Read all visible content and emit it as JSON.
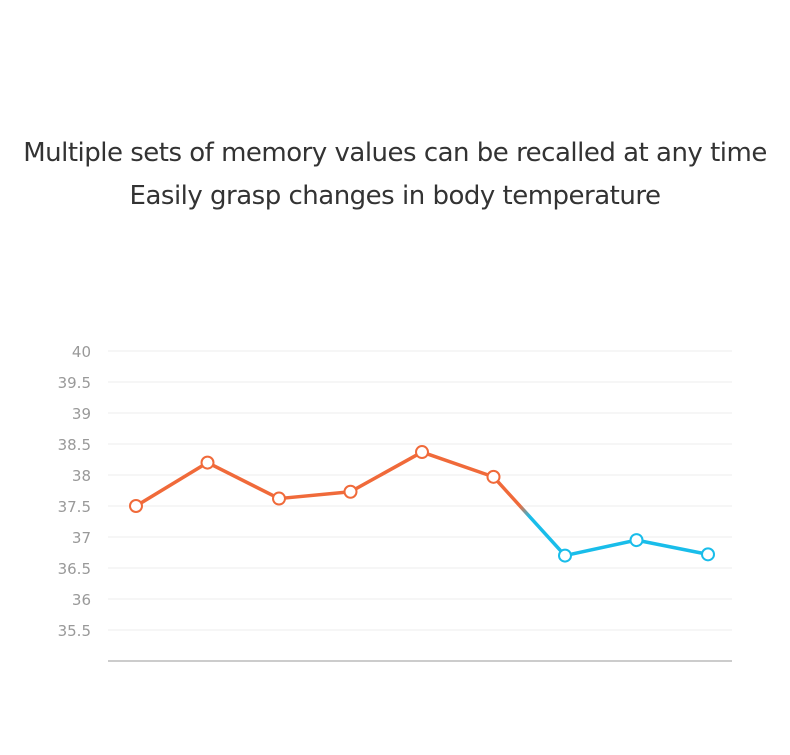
{
  "headline": {
    "line1": "Multiple sets of memory values can be recalled at any time",
    "line2": "Easily grasp changes in body temperature"
  },
  "chart_data": {
    "type": "line",
    "title": "",
    "xlabel": "",
    "ylabel": "",
    "ylim": [
      35,
      40
    ],
    "y_ticks": [
      "40",
      "39.5",
      "39",
      "38.5",
      "38",
      "37.5",
      "37",
      "36.5",
      "36",
      "35.5"
    ],
    "grid": true,
    "x": [
      1,
      2,
      3,
      4,
      5,
      6,
      7,
      8,
      9
    ],
    "values": [
      37.5,
      38.2,
      37.62,
      37.73,
      38.37,
      37.97,
      36.7,
      36.95,
      36.72
    ],
    "colors": {
      "high": "#f06a3a",
      "low": "#19bdea",
      "grid": "#eeeeee",
      "axis": "#999999"
    }
  }
}
